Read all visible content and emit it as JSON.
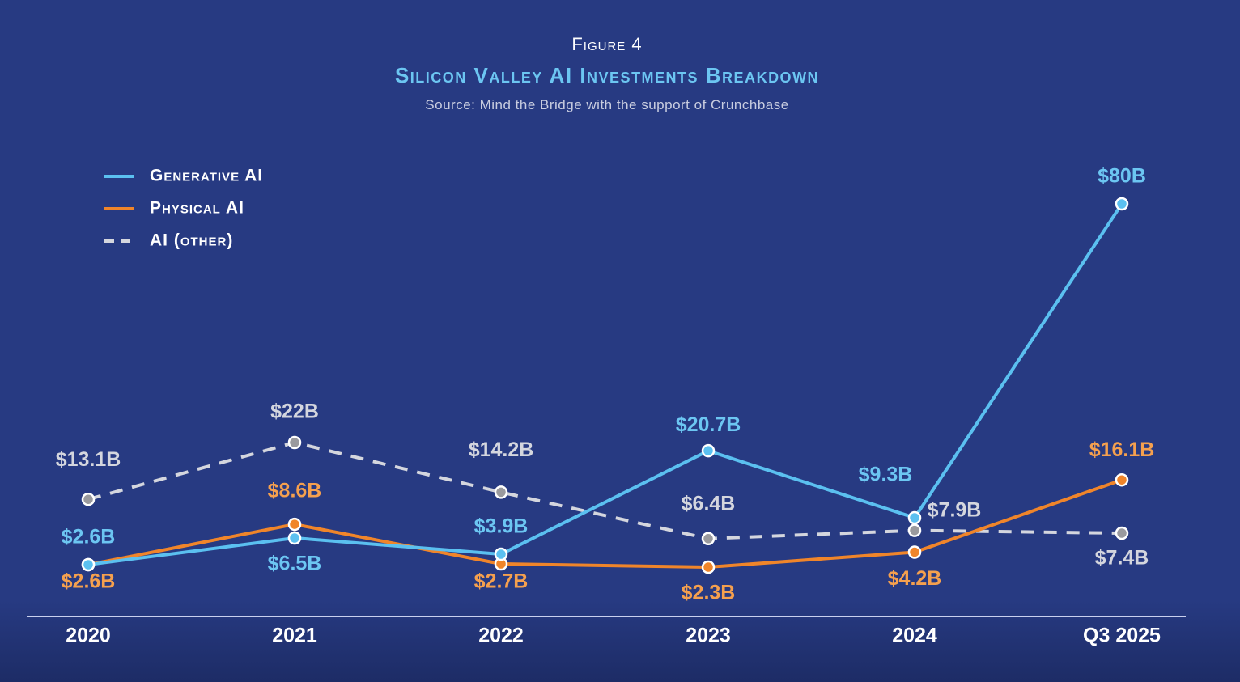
{
  "header": {
    "figure": "Figure 4",
    "title": "Silicon Valley AI Investments Breakdown",
    "source": "Source: Mind the Bridge with the support of Crunchbase"
  },
  "chart_data": {
    "type": "line",
    "title": "Silicon Valley AI Investments Breakdown",
    "categories": [
      "2020",
      "2021",
      "2022",
      "2023",
      "2024",
      "Q3 2025"
    ],
    "legend_position": "top-left",
    "grid": false,
    "series": [
      {
        "name": "Generative AI",
        "color": "#5bc0f0",
        "style": "solid",
        "values": [
          2.6,
          6.5,
          3.9,
          20.7,
          9.3,
          80
        ],
        "labels": [
          "$2.6B",
          "$6.5B",
          "$3.9B",
          "$20.7B",
          "$9.3B",
          "$80B"
        ]
      },
      {
        "name": "Physical AI",
        "color": "#f0852a",
        "style": "solid",
        "values": [
          2.6,
          8.6,
          2.7,
          2.3,
          4.2,
          16.1
        ],
        "labels": [
          "$2.6B",
          "$8.6B",
          "$2.7B",
          "$2.3B",
          "$4.2B",
          "$16.1B"
        ]
      },
      {
        "name": "AI (other)",
        "color": "#d4d6de",
        "style": "dashed",
        "values": [
          13.1,
          22,
          14.2,
          6.4,
          7.9,
          7.4
        ],
        "labels": [
          "$13.1B",
          "$22B",
          "$14.2B",
          "$6.4B",
          "$7.9B",
          "$7.4B"
        ]
      }
    ],
    "unit": "$B"
  }
}
